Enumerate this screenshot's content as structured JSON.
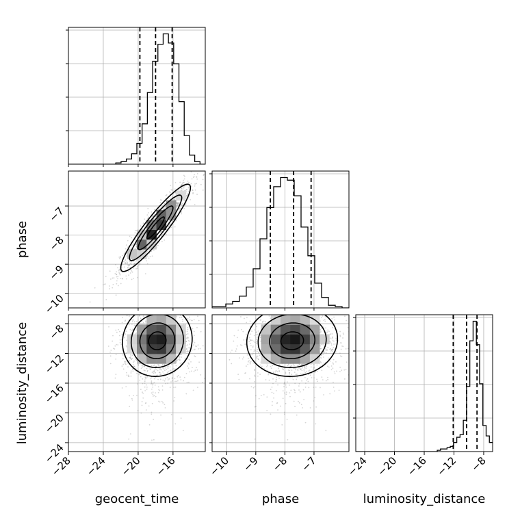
{
  "chart_data": {
    "type": "corner",
    "parameters": [
      "geocent_time",
      "phase",
      "luminosity_distance"
    ],
    "axis_labels": {
      "geocent_time": "geocent_time",
      "phase": "phase",
      "luminosity_distance": "luminosity_distance"
    },
    "ranges": {
      "geocent_time": [
        -28,
        -12.3
      ],
      "phase": [
        -10.5,
        -5.8
      ],
      "luminosity_distance": [
        -25.2,
        -6.8
      ]
    },
    "ticks": {
      "geocent_time": [
        -28,
        -24,
        -20,
        -16
      ],
      "phase": [
        -10,
        -9,
        -8,
        -7
      ],
      "luminosity_distance": [
        -24,
        -20,
        -16,
        -12,
        -8
      ]
    },
    "tick_labels": {
      "geocent_time": [
        "−28",
        "−24",
        "−20",
        "−16"
      ],
      "phase": [
        "−10",
        "−9",
        "−8",
        "−7"
      ],
      "luminosity_distance": [
        "−24",
        "−20",
        "−16",
        "−12",
        "−8"
      ]
    },
    "quantiles": {
      "geocent_time": [
        -19.8,
        -18.0,
        -16.1
      ],
      "phase": [
        -8.5,
        -7.7,
        -7.1
      ],
      "luminosity_distance": [
        -12.1,
        -10.3,
        -8.9
      ]
    },
    "histograms": {
      "geocent_time": {
        "range": [
          -28,
          -12.3
        ],
        "counts": [
          0,
          0,
          0,
          0,
          0,
          0,
          0,
          0,
          0,
          1,
          2,
          4,
          8,
          16,
          31,
          55,
          79,
          92,
          100,
          93,
          77,
          48,
          22,
          7,
          2,
          0
        ]
      },
      "phase": {
        "range": [
          -10.5,
          -5.8
        ],
        "counts": [
          1,
          1,
          3,
          5,
          9,
          16,
          30,
          53,
          77,
          93,
          100,
          98,
          86,
          62,
          40,
          19,
          8,
          2,
          1,
          0
        ]
      },
      "luminosity_distance": {
        "range": [
          -25.2,
          -6.8
        ],
        "counts": [
          0,
          0,
          0,
          0,
          0,
          0,
          0,
          0,
          0,
          0,
          0,
          0,
          0,
          0,
          0,
          0,
          0,
          0,
          0,
          0,
          0,
          0,
          0,
          0,
          0,
          1,
          2,
          2,
          3,
          4,
          7,
          11,
          13,
          24,
          50,
          85,
          100,
          82,
          52,
          20,
          12,
          7
        ]
      }
    },
    "scatter_2d": [
      {
        "x": "geocent_time",
        "y": "phase",
        "mean": [
          -18.0,
          -7.75
        ],
        "sd": [
          2.0,
          0.75
        ],
        "correlation": 0.92,
        "contour_levels_sigma": [
          0.5,
          1.0,
          1.5,
          2.0
        ]
      },
      {
        "x": "geocent_time",
        "y": "luminosity_distance",
        "mean": [
          -17.8,
          -10.3
        ],
        "sd": [
          2.0,
          2.4
        ],
        "correlation": 0.05,
        "contour_levels_sigma": [
          0.5,
          1.0,
          1.5,
          2.0
        ]
      },
      {
        "x": "phase",
        "y": "luminosity_distance",
        "mean": [
          -7.75,
          -10.3
        ],
        "sd": [
          0.78,
          2.4
        ],
        "correlation": 0.05,
        "contour_levels_sigma": [
          0.5,
          1.0,
          1.5,
          2.0
        ]
      }
    ],
    "grid": true
  }
}
